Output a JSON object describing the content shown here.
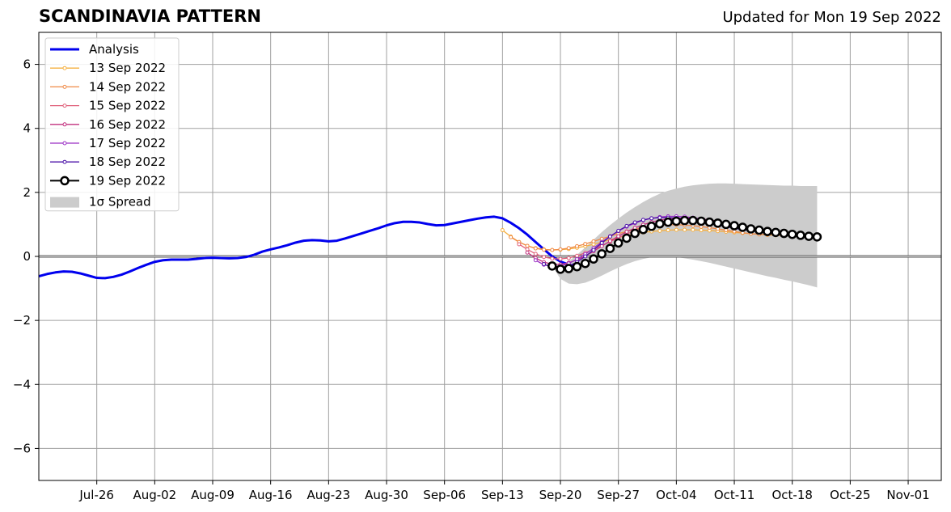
{
  "chart_data": {
    "type": "line",
    "title": "SCANDINAVIA PATTERN",
    "subtitle": "Updated for Mon 19 Sep 2022",
    "xlabel": "",
    "ylabel": "",
    "x_range": [
      "2022-07-19",
      "2022-11-05"
    ],
    "ylim": [
      -7,
      7
    ],
    "yticks": [
      -6,
      -4,
      -2,
      0,
      2,
      4,
      6
    ],
    "ytick_labels": [
      "−6",
      "−4",
      "−2",
      "0",
      "2",
      "4",
      "6"
    ],
    "xticks": [
      {
        "date": "2022-07-26",
        "label": "Jul-26"
      },
      {
        "date": "2022-08-02",
        "label": "Aug-02"
      },
      {
        "date": "2022-08-09",
        "label": "Aug-09"
      },
      {
        "date": "2022-08-16",
        "label": "Aug-16"
      },
      {
        "date": "2022-08-23",
        "label": "Aug-23"
      },
      {
        "date": "2022-08-30",
        "label": "Aug-30"
      },
      {
        "date": "2022-09-06",
        "label": "Sep-06"
      },
      {
        "date": "2022-09-13",
        "label": "Sep-13"
      },
      {
        "date": "2022-09-20",
        "label": "Sep-20"
      },
      {
        "date": "2022-09-27",
        "label": "Sep-27"
      },
      {
        "date": "2022-10-04",
        "label": "Oct-04"
      },
      {
        "date": "2022-10-11",
        "label": "Oct-11"
      },
      {
        "date": "2022-10-18",
        "label": "Oct-18"
      },
      {
        "date": "2022-10-25",
        "label": "Oct-25"
      },
      {
        "date": "2022-11-01",
        "label": "Nov-01"
      }
    ],
    "grid": true,
    "zero_line": true,
    "legend_position": "top-left",
    "series": [
      {
        "name": "Analysis",
        "color": "#0000ee",
        "style": "thick",
        "start": "2022-07-19",
        "values": [
          -0.62,
          -0.55,
          -0.5,
          -0.47,
          -0.48,
          -0.53,
          -0.6,
          -0.67,
          -0.68,
          -0.64,
          -0.57,
          -0.47,
          -0.36,
          -0.26,
          -0.17,
          -0.12,
          -0.1,
          -0.1,
          -0.1,
          -0.08,
          -0.05,
          -0.04,
          -0.05,
          -0.06,
          -0.05,
          -0.02,
          0.05,
          0.15,
          0.22,
          0.28,
          0.35,
          0.43,
          0.49,
          0.51,
          0.5,
          0.47,
          0.49,
          0.56,
          0.64,
          0.72,
          0.8,
          0.88,
          0.97,
          1.04,
          1.08,
          1.08,
          1.06,
          1.01,
          0.97,
          0.98,
          1.03,
          1.08,
          1.13,
          1.18,
          1.22,
          1.24,
          1.19,
          1.05,
          0.88,
          0.68,
          0.45,
          0.22,
          0.0,
          -0.16,
          -0.26,
          -0.32
        ]
      },
      {
        "name": "13 Sep 2022",
        "color": "#f5b041",
        "style": "markers-small",
        "start": "2022-09-13",
        "values": [
          0.82,
          0.62,
          0.45,
          0.33,
          0.26,
          0.22,
          0.2,
          0.21,
          0.23,
          0.27,
          0.32,
          0.38,
          0.45,
          0.52,
          0.59,
          0.65,
          0.7,
          0.75,
          0.78,
          0.8,
          0.82,
          0.83,
          0.83,
          0.83,
          0.82,
          0.81,
          0.79,
          0.77,
          0.75,
          0.73,
          0.71,
          0.69,
          0.67,
          0.66,
          0.65
        ]
      },
      {
        "name": "14 Sep 2022",
        "color": "#ef8a47",
        "style": "markers-small",
        "start": "2022-09-14",
        "values": [
          0.6,
          0.45,
          0.33,
          0.25,
          0.21,
          0.2,
          0.22,
          0.26,
          0.32,
          0.39,
          0.47,
          0.55,
          0.63,
          0.71,
          0.78,
          0.85,
          0.91,
          0.95,
          0.98,
          0.99,
          0.99,
          0.98,
          0.96,
          0.93,
          0.9,
          0.86,
          0.82,
          0.78,
          0.74,
          0.71,
          0.69,
          0.68,
          0.67,
          0.66
        ]
      },
      {
        "name": "15 Sep 2022",
        "color": "#e0607a",
        "style": "markers-small",
        "start": "2022-09-15",
        "values": [
          0.38,
          0.22,
          0.08,
          -0.02,
          -0.07,
          -0.08,
          -0.05,
          0.02,
          0.11,
          0.22,
          0.34,
          0.46,
          0.58,
          0.7,
          0.81,
          0.9,
          0.98,
          1.04,
          1.08,
          1.1,
          1.1,
          1.09,
          1.07,
          1.04,
          1.0,
          0.96,
          0.92,
          0.87,
          0.83,
          0.79,
          0.76,
          0.74,
          0.72
        ]
      },
      {
        "name": "16 Sep 2022",
        "color": "#c2307e",
        "style": "markers-small",
        "start": "2022-09-16",
        "values": [
          0.12,
          -0.05,
          -0.18,
          -0.24,
          -0.25,
          -0.2,
          -0.11,
          0.01,
          0.16,
          0.32,
          0.48,
          0.63,
          0.77,
          0.89,
          0.99,
          1.07,
          1.13,
          1.17,
          1.19,
          1.2,
          1.19,
          1.17,
          1.14,
          1.1,
          1.05,
          1.0,
          0.94,
          0.89,
          0.84,
          0.8,
          0.77,
          0.75
        ]
      },
      {
        "name": "17 Sep 2022",
        "color": "#9a2fc4",
        "style": "markers-small",
        "start": "2022-09-17",
        "values": [
          -0.12,
          -0.26,
          -0.32,
          -0.3,
          -0.22,
          -0.09,
          0.07,
          0.26,
          0.45,
          0.63,
          0.79,
          0.93,
          1.04,
          1.13,
          1.19,
          1.23,
          1.25,
          1.25,
          1.24,
          1.21,
          1.17,
          1.12,
          1.07,
          1.01,
          0.95,
          0.9,
          0.85,
          0.81,
          0.77,
          0.74,
          0.72
        ]
      },
      {
        "name": "18 Sep 2022",
        "color": "#4b12a8",
        "style": "markers-small",
        "start": "2022-09-18",
        "values": [
          -0.24,
          -0.34,
          -0.36,
          -0.3,
          -0.18,
          0.0,
          0.2,
          0.42,
          0.62,
          0.8,
          0.95,
          1.06,
          1.14,
          1.19,
          1.21,
          1.21,
          1.2,
          1.17,
          1.13,
          1.08,
          1.03,
          0.98,
          0.93,
          0.88,
          0.84,
          0.8,
          0.77,
          0.74,
          0.72,
          0.7
        ]
      },
      {
        "name": "19 Sep 2022",
        "color": "#000000",
        "style": "markers-large",
        "start": "2022-09-19",
        "values": [
          -0.3,
          -0.4,
          -0.38,
          -0.32,
          -0.22,
          -0.08,
          0.08,
          0.25,
          0.42,
          0.57,
          0.72,
          0.84,
          0.94,
          1.02,
          1.07,
          1.1,
          1.12,
          1.12,
          1.1,
          1.07,
          1.04,
          1.0,
          0.96,
          0.91,
          0.86,
          0.82,
          0.78,
          0.75,
          0.72,
          0.69,
          0.66,
          0.63,
          0.61
        ]
      }
    ],
    "spread": {
      "name": "1σ Spread",
      "color": "#cccccc",
      "start": "2022-09-19",
      "upper": [
        -0.3,
        -0.3,
        -0.15,
        0.05,
        0.28,
        0.52,
        0.76,
        0.98,
        1.18,
        1.37,
        1.54,
        1.7,
        1.84,
        1.96,
        2.05,
        2.12,
        2.18,
        2.22,
        2.25,
        2.27,
        2.28,
        2.28,
        2.27,
        2.26,
        2.25,
        2.24,
        2.23,
        2.22,
        2.21,
        2.21,
        2.2,
        2.2,
        2.2
      ],
      "lower": [
        -0.3,
        -0.7,
        -0.85,
        -0.87,
        -0.82,
        -0.72,
        -0.6,
        -0.47,
        -0.35,
        -0.24,
        -0.15,
        -0.08,
        -0.03,
        0.0,
        0.0,
        -0.02,
        -0.06,
        -0.1,
        -0.15,
        -0.2,
        -0.26,
        -0.32,
        -0.38,
        -0.44,
        -0.5,
        -0.56,
        -0.62,
        -0.67,
        -0.73,
        -0.78,
        -0.84,
        -0.9,
        -0.97
      ]
    }
  }
}
